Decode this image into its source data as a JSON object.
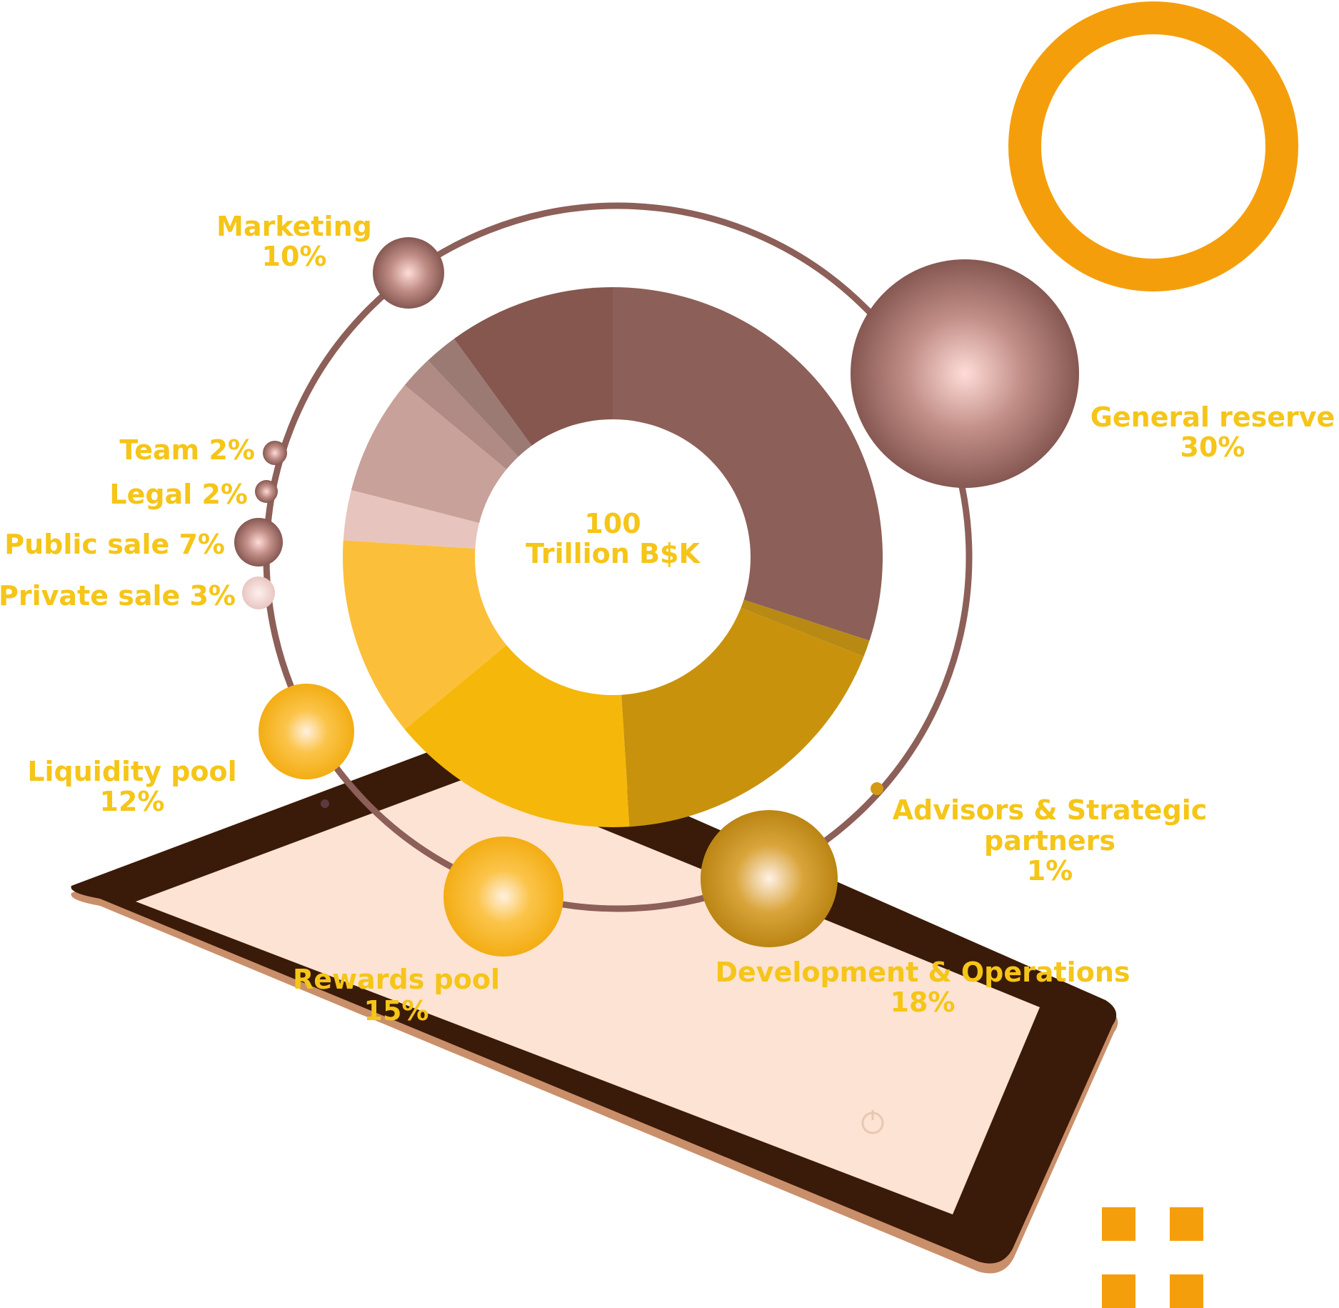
{
  "chart_data": {
    "type": "pie",
    "center_label": {
      "line1": "100",
      "line2": "Trillion B$K"
    },
    "series": [
      {
        "label": "General reserve",
        "value": 30,
        "value_text": "30%",
        "color": "#8c5f58"
      },
      {
        "label": "Advisors & Strategic partners",
        "value": 1,
        "value_text": "1%",
        "color": "#b88a14"
      },
      {
        "label": "Development & Operations",
        "value": 18,
        "value_text": "18%",
        "color": "#c8920c"
      },
      {
        "label": "Rewards pool",
        "value": 15,
        "value_text": "15%",
        "color": "#f5b70a"
      },
      {
        "label": "Liquidity pool",
        "value": 12,
        "value_text": "12%",
        "color": "#fbbf3a"
      },
      {
        "label": "Private sale",
        "value": 3,
        "value_text": "3%",
        "color": "#e8c4be"
      },
      {
        "label": "Public sale",
        "value": 7,
        "value_text": "7%",
        "color": "#c8a19a"
      },
      {
        "label": "Legal",
        "value": 2,
        "value_text": "2%",
        "color": "#b08a84"
      },
      {
        "label": "Team",
        "value": 2,
        "value_text": "2%",
        "color": "#9c7a74"
      },
      {
        "label": "Marketing",
        "value": 10,
        "value_text": "10%",
        "color": "#86574f"
      }
    ]
  },
  "labels": {
    "marketing": {
      "name": "Marketing",
      "pct": "10%"
    },
    "general_reserve": {
      "name": "General reserve",
      "pct": "30%"
    },
    "team": "Team 2%",
    "legal": "Legal 2%",
    "public_sale": "Public sale 7%",
    "private_sale": "Private sale 3%",
    "liquidity_pool": {
      "name": "Liquidity pool",
      "pct": "12%"
    },
    "advisors": {
      "line1": "Advisors & Strategic",
      "line2": "partners",
      "pct": "1%"
    },
    "rewards_pool": {
      "name": "Rewards pool",
      "pct": "15%"
    },
    "development": {
      "name": "Development & Operations",
      "pct": "18%"
    }
  },
  "colors": {
    "label_text": "#f5c518",
    "brown_accent": "#8c5f58",
    "orange_accent": "#f59e0b",
    "tablet_frame": "#3a1a08",
    "tablet_screen": "#fde3d3"
  }
}
